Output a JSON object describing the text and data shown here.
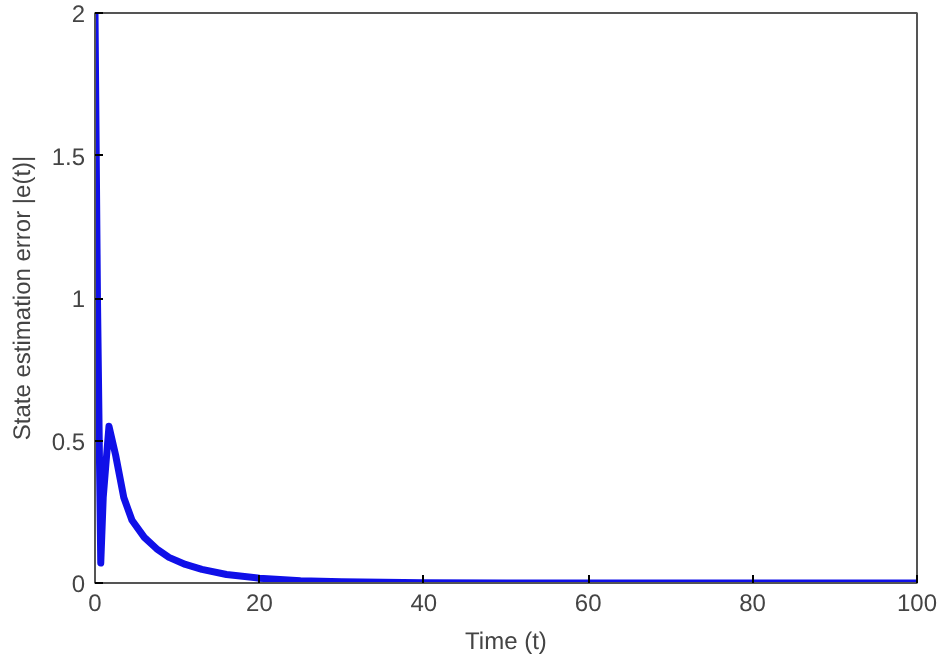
{
  "chart_data": {
    "type": "line",
    "xlabel": "Time (t)",
    "ylabel": "State estimation error |e(t)|",
    "series": [
      {
        "color": "#1010e8",
        "x": [
          0,
          0.3,
          0.7,
          1.0,
          1.7,
          2.5,
          3.5,
          4.5,
          6,
          7.5,
          9,
          11,
          13,
          16,
          20,
          25,
          30,
          40,
          50,
          60,
          80,
          100
        ],
        "values": [
          2,
          1.0,
          0.07,
          0.3,
          0.55,
          0.45,
          0.3,
          0.22,
          0.16,
          0.12,
          0.09,
          0.065,
          0.048,
          0.03,
          0.017,
          0.008,
          0.004,
          0.001,
          0,
          0,
          0,
          0
        ]
      }
    ],
    "xlim": [
      0,
      100
    ],
    "ylim": [
      0,
      2
    ],
    "xticks": [
      0,
      20,
      40,
      60,
      80,
      100
    ],
    "yticks": [
      0,
      0.5,
      1,
      1.5,
      2
    ],
    "grid": false,
    "line_style": "solid"
  }
}
